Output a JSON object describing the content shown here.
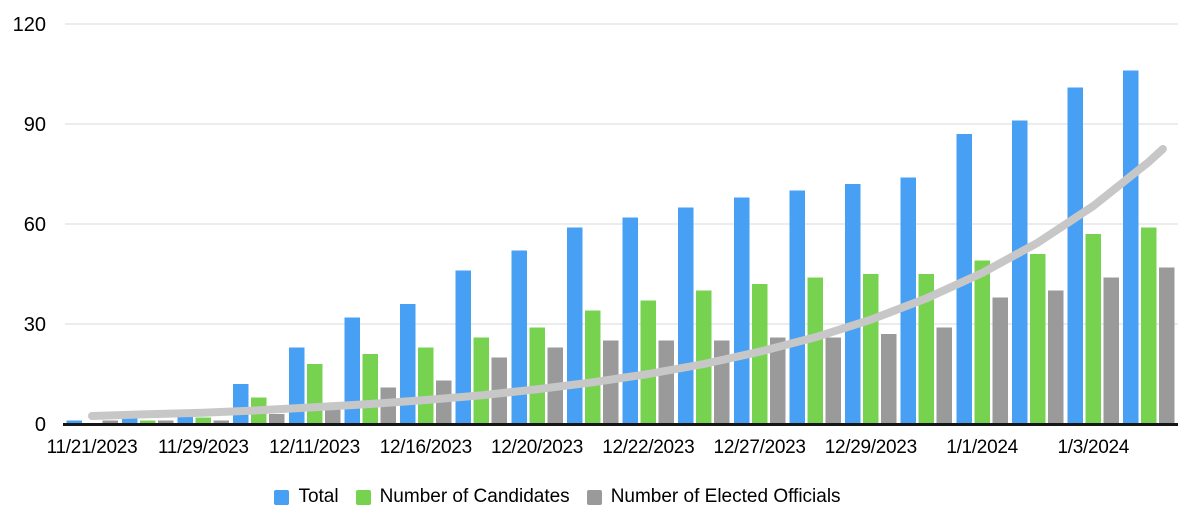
{
  "chart_data": {
    "type": "bar",
    "title": "",
    "grid": true,
    "legend_position": "bottom",
    "y_axis": {
      "ticks": [
        0,
        30,
        60,
        90,
        120
      ],
      "ylim": [
        0,
        120
      ]
    },
    "categories": [
      "11/21/2023",
      "",
      "11/29/2023",
      "",
      "12/11/2023",
      "",
      "12/16/2023",
      "",
      "12/20/2023",
      "",
      "12/22/2023",
      "",
      "12/27/2023",
      "",
      "12/29/2023",
      "",
      "1/1/2024",
      "",
      "1/3/2024",
      ""
    ],
    "series": [
      {
        "name": "Total",
        "color": "#47A0F4",
        "values": [
          1,
          2,
          4,
          12,
          23,
          32,
          36,
          46,
          52,
          59,
          62,
          65,
          68,
          70,
          72,
          74,
          87,
          91,
          101,
          106
        ]
      },
      {
        "name": "Number of Candidates",
        "color": "#77D34F",
        "values": [
          0,
          1,
          2,
          8,
          18,
          21,
          23,
          26,
          29,
          34,
          37,
          40,
          42,
          44,
          45,
          45,
          49,
          51,
          57,
          59
        ]
      },
      {
        "name": "Number of Elected Officials",
        "color": "#9A9A9A",
        "values": [
          1,
          1,
          1,
          3,
          5,
          11,
          13,
          20,
          23,
          25,
          25,
          25,
          26,
          26,
          27,
          29,
          38,
          40,
          44,
          47
        ]
      }
    ],
    "trendline": {
      "type": "exponential",
      "color": "#C7C7C7",
      "points": [
        [
          1,
          2.4
        ],
        [
          2,
          2.9
        ],
        [
          3,
          3.4
        ],
        [
          4,
          4.1
        ],
        [
          5,
          5.0
        ],
        [
          6,
          6.0
        ],
        [
          7,
          7.2
        ],
        [
          8,
          8.6
        ],
        [
          9,
          10.4
        ],
        [
          10,
          12.5
        ],
        [
          11,
          15.0
        ],
        [
          12,
          18.0
        ],
        [
          13,
          21.7
        ],
        [
          14,
          26.0
        ],
        [
          15,
          31.3
        ],
        [
          16,
          37.7
        ],
        [
          17,
          45.3
        ],
        [
          18,
          54.4
        ],
        [
          19,
          65.4
        ],
        [
          20,
          78.7
        ],
        [
          20.25,
          82.5
        ]
      ]
    }
  },
  "colors": {
    "background": "#FFFFFF",
    "gridline": "#D8D8D8",
    "axis_line": "#161616",
    "text": "#000000",
    "total": "#47A0F4",
    "candidates": "#77D34F",
    "elected": "#9A9A9A",
    "trendline": "#C7C7C7"
  }
}
